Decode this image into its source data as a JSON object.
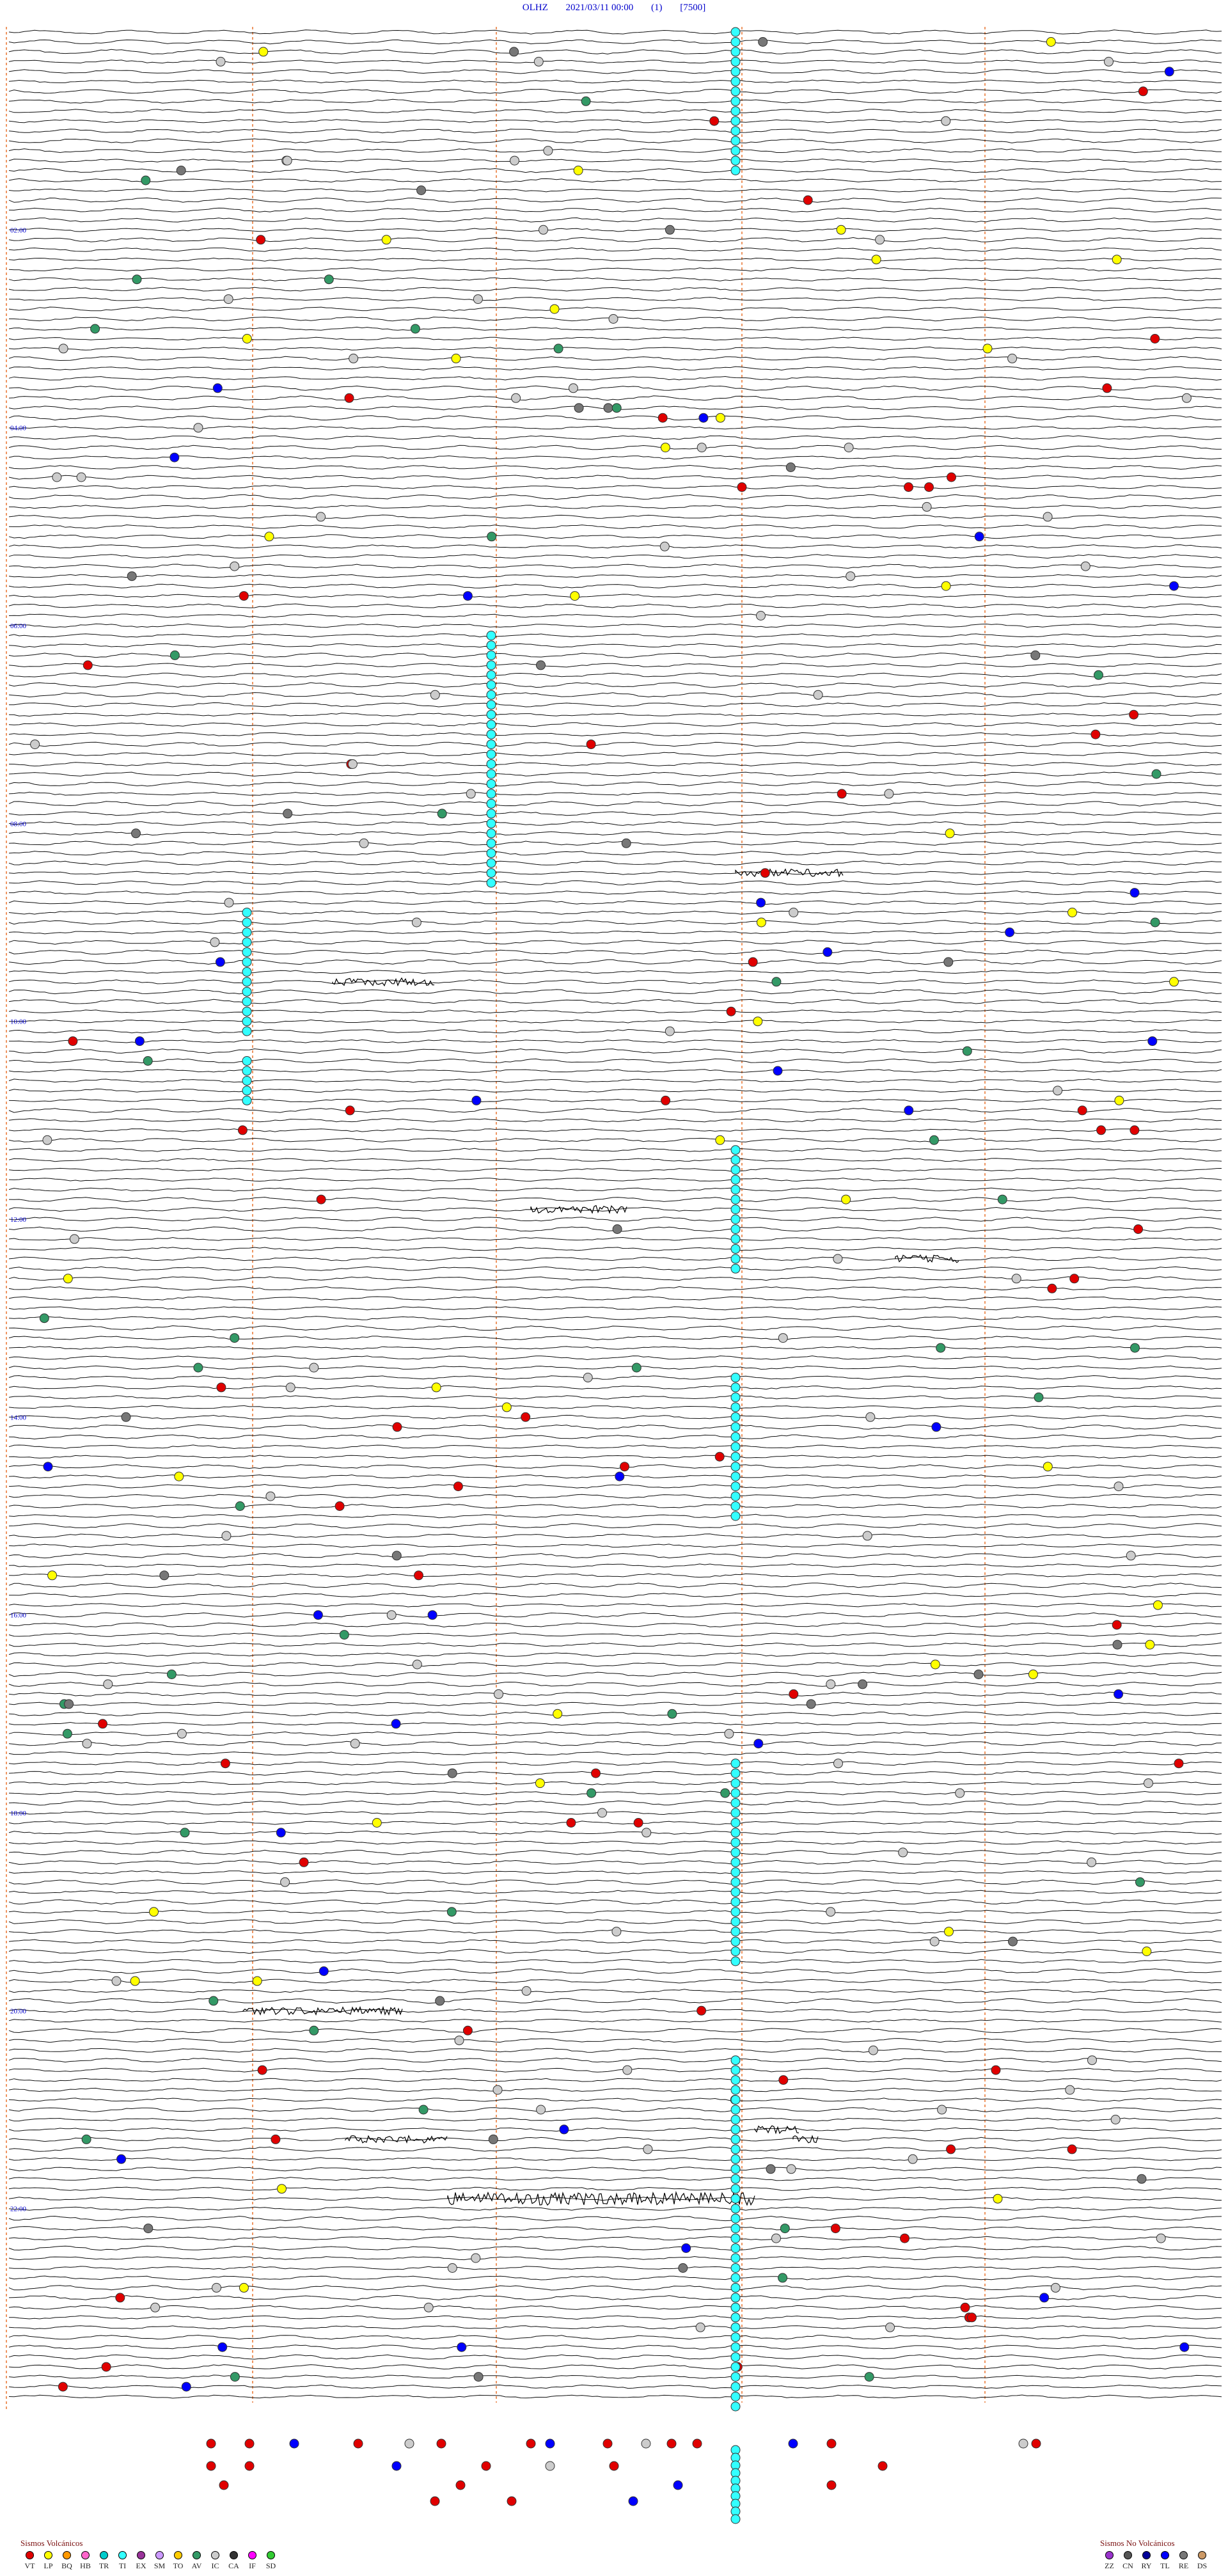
{
  "header": {
    "station": "OLHZ",
    "date": "2021/03/11 00:00",
    "channel": "(1)",
    "scale": "[7500]"
  },
  "chart_data": {
    "type": "scatter",
    "subtype": "helicorder",
    "rows": 120,
    "minutes_per_row": 12,
    "time_labels": [
      "02:00",
      "04:00",
      "06:00",
      "08:00",
      "10:00",
      "12:00",
      "14:00",
      "16:00",
      "18:00",
      "20:00",
      "22:00"
    ],
    "time_label_every_rows": 10,
    "vertical_marker_columns": [
      0.205,
      0.405,
      0.605,
      0.805
    ],
    "cyan_columns": [
      {
        "col": 0.6,
        "row_start": 0,
        "row_end": 14,
        "dense": true
      },
      {
        "col": 0.4,
        "row_start": 61,
        "row_end": 86,
        "dense": true
      },
      {
        "col": 0.2,
        "row_start": 89,
        "row_end": 101,
        "dense": true
      },
      {
        "col": 0.2,
        "row_start": 104,
        "row_end": 108,
        "dense": true
      },
      {
        "col": 0.6,
        "row_start": 113,
        "row_end": 125,
        "dense": true
      },
      {
        "col": 0.6,
        "row_start": 136,
        "row_end": 150,
        "dense": true
      },
      {
        "col": 0.6,
        "row_start": 175,
        "row_end": 195,
        "dense": true
      },
      {
        "col": 0.6,
        "row_start": 205,
        "row_end": 240,
        "dense": true
      }
    ],
    "legend_volcanic": {
      "title": "Sismos Volcánicos",
      "items": [
        {
          "code": "VT",
          "color": "#e00000"
        },
        {
          "code": "LP",
          "color": "#ffff00"
        },
        {
          "code": "BQ",
          "color": "#ff9900"
        },
        {
          "code": "HB",
          "color": "#ff66cc"
        },
        {
          "code": "TR",
          "color": "#00cccc"
        },
        {
          "code": "TI",
          "color": "#33ffff"
        },
        {
          "code": "EX",
          "color": "#993399"
        },
        {
          "code": "SM",
          "color": "#cc99ff"
        },
        {
          "code": "TO",
          "color": "#ffcc00"
        },
        {
          "code": "AV",
          "color": "#339966"
        },
        {
          "code": "IC",
          "color": "#cccccc"
        },
        {
          "code": "CA",
          "color": "#333333"
        },
        {
          "code": "IF",
          "color": "#ff00ff"
        },
        {
          "code": "SD",
          "color": "#33cc33"
        }
      ]
    },
    "legend_nonvolcanic": {
      "title": "Sismos No Volcánicos",
      "items": [
        {
          "code": "ZZ",
          "color": "#9933cc"
        },
        {
          "code": "CN",
          "color": "#555555"
        },
        {
          "code": "RY",
          "color": "#000099"
        },
        {
          "code": "TL",
          "color": "#0000ff"
        },
        {
          "code": "RE",
          "color": "#777777"
        },
        {
          "code": "DS",
          "color": "#cc9966"
        }
      ]
    }
  }
}
